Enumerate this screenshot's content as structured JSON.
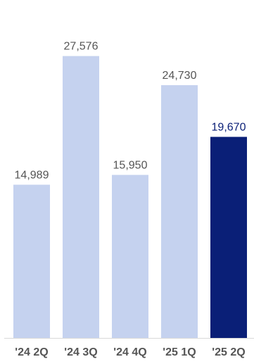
{
  "chart_data": {
    "type": "bar",
    "categories": [
      "'24 2Q",
      "'24 3Q",
      "'24 4Q",
      "'25 1Q",
      "'25 2Q"
    ],
    "values": [
      14989,
      27576,
      15950,
      24730,
      19670
    ],
    "value_labels": [
      "14,989",
      "27,576",
      "15,950",
      "24,730",
      "19,670"
    ],
    "highlight_index": 4,
    "title": "",
    "xlabel": "",
    "ylabel": "",
    "ylim": [
      0,
      31200
    ],
    "grid": false,
    "legend": "none",
    "colors": {
      "bar": "#c5d2ef",
      "bar_highlight": "#0a1f77",
      "label": "#555555",
      "label_highlight": "#0a1f77",
      "category_label": "#555555",
      "axis": "#d9d9d9"
    }
  }
}
